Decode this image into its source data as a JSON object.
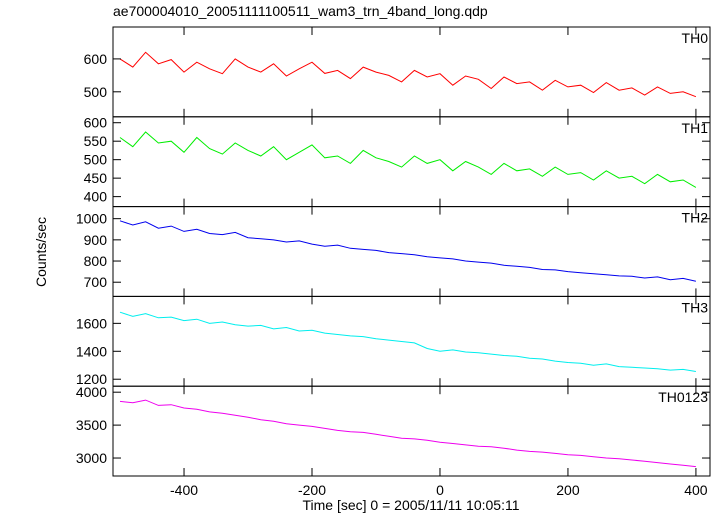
{
  "chart_data": {
    "type": "line",
    "title": "ae700004010_20051111100511_wam3_trn_4band_long.qdp",
    "xlabel": "Time [sec] 0 = 2005/11/11 10:05:11",
    "ylabel": "Counts/sec",
    "xlim": [
      -511,
      422
    ],
    "xticks": [
      -400,
      -200,
      0,
      200,
      400
    ],
    "x": [
      -500,
      -480,
      -460,
      -440,
      -420,
      -400,
      -380,
      -360,
      -340,
      -320,
      -300,
      -280,
      -260,
      -240,
      -220,
      -200,
      -180,
      -160,
      -140,
      -120,
      -100,
      -80,
      -60,
      -40,
      -20,
      0,
      20,
      40,
      60,
      80,
      100,
      120,
      140,
      160,
      180,
      200,
      220,
      240,
      260,
      280,
      300,
      320,
      340,
      360,
      380,
      400
    ],
    "series": [
      {
        "name": "TH0",
        "color": "#ff0000",
        "ylim": [
          424,
          697
        ],
        "yticks": [
          500,
          600
        ],
        "values": [
          600,
          575,
          620,
          585,
          598,
          560,
          590,
          570,
          555,
          600,
          575,
          560,
          585,
          548,
          570,
          590,
          556,
          565,
          540,
          575,
          560,
          550,
          530,
          565,
          545,
          555,
          520,
          548,
          538,
          510,
          545,
          525,
          530,
          505,
          535,
          515,
          520,
          498,
          528,
          505,
          512,
          490,
          515,
          495,
          500,
          485
        ]
      },
      {
        "name": "TH1",
        "color": "#00ee00",
        "ylim": [
          373,
          616
        ],
        "yticks": [
          400,
          450,
          500,
          550,
          600
        ],
        "values": [
          560,
          535,
          575,
          545,
          550,
          520,
          560,
          530,
          515,
          545,
          525,
          510,
          535,
          500,
          520,
          540,
          505,
          510,
          490,
          525,
          505,
          495,
          480,
          510,
          490,
          500,
          470,
          495,
          480,
          460,
          490,
          470,
          475,
          455,
          480,
          460,
          465,
          445,
          470,
          450,
          455,
          435,
          460,
          440,
          445,
          425
        ]
      },
      {
        "name": "TH2",
        "color": "#0000ee",
        "ylim": [
          633,
          1057
        ],
        "yticks": [
          700,
          800,
          900,
          1000
        ],
        "values": [
          990,
          970,
          985,
          955,
          965,
          940,
          950,
          930,
          925,
          935,
          910,
          905,
          900,
          890,
          895,
          880,
          870,
          875,
          860,
          855,
          850,
          840,
          835,
          830,
          820,
          815,
          810,
          800,
          795,
          790,
          780,
          775,
          770,
          760,
          758,
          750,
          745,
          740,
          735,
          730,
          728,
          720,
          725,
          712,
          718,
          705
        ]
      },
      {
        "name": "TH3",
        "color": "#00eeee",
        "ylim": [
          1150,
          1793
        ],
        "yticks": [
          1200,
          1400,
          1600
        ],
        "values": [
          1680,
          1650,
          1670,
          1640,
          1645,
          1620,
          1630,
          1600,
          1610,
          1590,
          1580,
          1585,
          1560,
          1570,
          1545,
          1550,
          1530,
          1520,
          1510,
          1505,
          1490,
          1480,
          1470,
          1460,
          1420,
          1400,
          1410,
          1395,
          1390,
          1380,
          1370,
          1365,
          1350,
          1345,
          1330,
          1320,
          1315,
          1300,
          1310,
          1290,
          1285,
          1280,
          1275,
          1265,
          1270,
          1255
        ]
      },
      {
        "name": "TH0123",
        "color": "#ee00ee",
        "ylim": [
          2727,
          4091
        ],
        "yticks": [
          3000,
          3500,
          4000
        ],
        "values": [
          3860,
          3840,
          3880,
          3800,
          3810,
          3760,
          3740,
          3700,
          3680,
          3650,
          3620,
          3580,
          3560,
          3520,
          3500,
          3480,
          3450,
          3420,
          3400,
          3390,
          3360,
          3330,
          3300,
          3290,
          3270,
          3240,
          3220,
          3200,
          3180,
          3170,
          3150,
          3120,
          3100,
          3090,
          3070,
          3050,
          3040,
          3020,
          3000,
          2990,
          2970,
          2950,
          2930,
          2910,
          2890,
          2870
        ]
      }
    ]
  }
}
